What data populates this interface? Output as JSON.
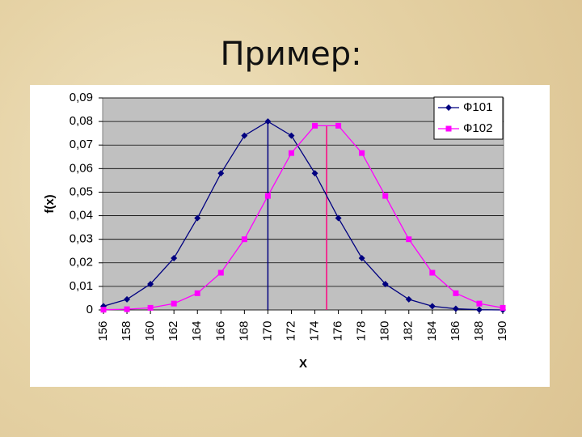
{
  "title": "Пример:",
  "chart_data": {
    "type": "line",
    "ylabel": "f(x)",
    "xlabel": "X",
    "x": [
      156,
      158,
      160,
      162,
      164,
      166,
      168,
      170,
      172,
      174,
      176,
      178,
      180,
      182,
      184,
      186,
      188,
      190
    ],
    "xlim": [
      156,
      190
    ],
    "xticks": [
      156,
      158,
      160,
      162,
      164,
      166,
      168,
      170,
      172,
      174,
      176,
      178,
      180,
      182,
      184,
      186,
      188,
      190
    ],
    "ylim": [
      0,
      0.09
    ],
    "yticks": [
      0,
      {
        "value": 0.01,
        "label": "0,01"
      },
      {
        "value": 0.02,
        "label": "0,02"
      },
      {
        "value": 0.03,
        "label": "0,03"
      },
      {
        "value": 0.04,
        "label": "0,04"
      },
      {
        "value": 0.05,
        "label": "0,05"
      },
      {
        "value": 0.06,
        "label": "0,06"
      },
      {
        "value": 0.07,
        "label": "0,07"
      },
      {
        "value": 0.08,
        "label": "0,08"
      },
      {
        "value": 0.09,
        "label": "0,09"
      }
    ],
    "grid": true,
    "legend": "top-right",
    "series": [
      {
        "name": "Ф101",
        "color": "#000080",
        "marker": "diamond",
        "values": [
          0.0016,
          0.0045,
          0.011,
          0.022,
          0.039,
          0.058,
          0.074,
          0.08,
          0.074,
          0.058,
          0.039,
          0.022,
          0.011,
          0.0045,
          0.0016,
          0.0005,
          0.0001,
          0
        ]
      },
      {
        "name": "Ф102",
        "color": "#ff00ff",
        "marker": "square",
        "values": [
          0.0001,
          0.0003,
          0.0009,
          0.0027,
          0.0071,
          0.0158,
          0.03,
          0.0484,
          0.0666,
          0.0782,
          0.0782,
          0.0666,
          0.0484,
          0.03,
          0.0158,
          0.0071,
          0.0027,
          0.0009
        ]
      }
    ],
    "mean_lines": [
      {
        "x": 170,
        "y": 0.08,
        "color": "#000080"
      },
      {
        "x": 175,
        "y": 0.0782,
        "color": "#ff0080"
      }
    ]
  }
}
